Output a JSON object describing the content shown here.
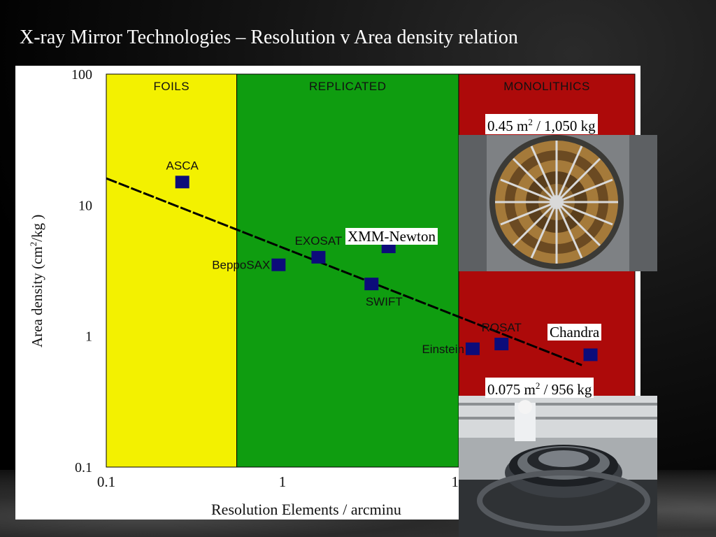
{
  "slide": {
    "title": "X-ray Mirror Technologies – Resolution v Area density relation"
  },
  "chart_data": {
    "type": "scatter",
    "x_scale": "log",
    "y_scale": "log",
    "xlim": [
      0.1,
      100
    ],
    "ylim": [
      0.1,
      100
    ],
    "x_ticks": [
      {
        "value": 0.1,
        "label": "0.1"
      },
      {
        "value": 1,
        "label": "1"
      },
      {
        "value": 10,
        "label": "10"
      }
    ],
    "y_ticks": [
      {
        "value": 100,
        "label": "100"
      },
      {
        "value": 10,
        "label": "10"
      },
      {
        "value": 1,
        "label": "1"
      },
      {
        "value": 0.1,
        "label": "0.1"
      }
    ],
    "xlabel": "Resolution Elements / arcminu",
    "ylabel_parts": [
      "Area density (cm",
      "2",
      "/kg )"
    ],
    "regions": [
      {
        "label": "FOILS",
        "x_from": 0.1,
        "x_to": 0.55,
        "color": "#f3f100"
      },
      {
        "label": "REPLICATED",
        "x_from": 0.55,
        "x_to": 10,
        "color": "#0f9d10"
      },
      {
        "label": "MONOLITHICS",
        "x_from": 10,
        "x_to": 100,
        "color": "#ad0a0a"
      }
    ],
    "points": [
      {
        "label": "ASCA",
        "x": 0.27,
        "y": 15,
        "label_pos": "above"
      },
      {
        "label": "BeppoSAX",
        "x": 0.95,
        "y": 3.5,
        "label_pos": "left"
      },
      {
        "label": "EXOSAT",
        "x": 1.6,
        "y": 4.0,
        "label_pos": "above"
      },
      {
        "label": "",
        "x": 4.0,
        "y": 4.8,
        "label_pos": "none"
      },
      {
        "label": "SWIFT",
        "x": 3.2,
        "y": 2.5,
        "label_pos": "below"
      },
      {
        "label": "Einstein",
        "x": 12,
        "y": 0.8,
        "label_pos": "left"
      },
      {
        "label": "ROSAT",
        "x": 17.5,
        "y": 0.87,
        "label_pos": "above"
      },
      {
        "label": "",
        "x": 56,
        "y": 0.72,
        "label_pos": "none"
      }
    ],
    "trend_line": {
      "x": [
        0.1,
        50
      ],
      "y": [
        16,
        0.6
      ]
    },
    "highlight_box": {
      "x_from": 13,
      "x_to": 18,
      "y_from": 20,
      "y_to": 30,
      "color": "#a0102a"
    },
    "colors": {
      "marker": "#0c0c7a",
      "trend": "#000000"
    }
  },
  "callouts": {
    "xmm_mass": [
      "0.45 m",
      "2",
      " / 1,050 kg"
    ],
    "xmm_name": "XMM-Newton",
    "chandra_name": "Chandra",
    "chandra_mass": [
      "0.075 m",
      "2",
      " / 956 kg"
    ]
  }
}
